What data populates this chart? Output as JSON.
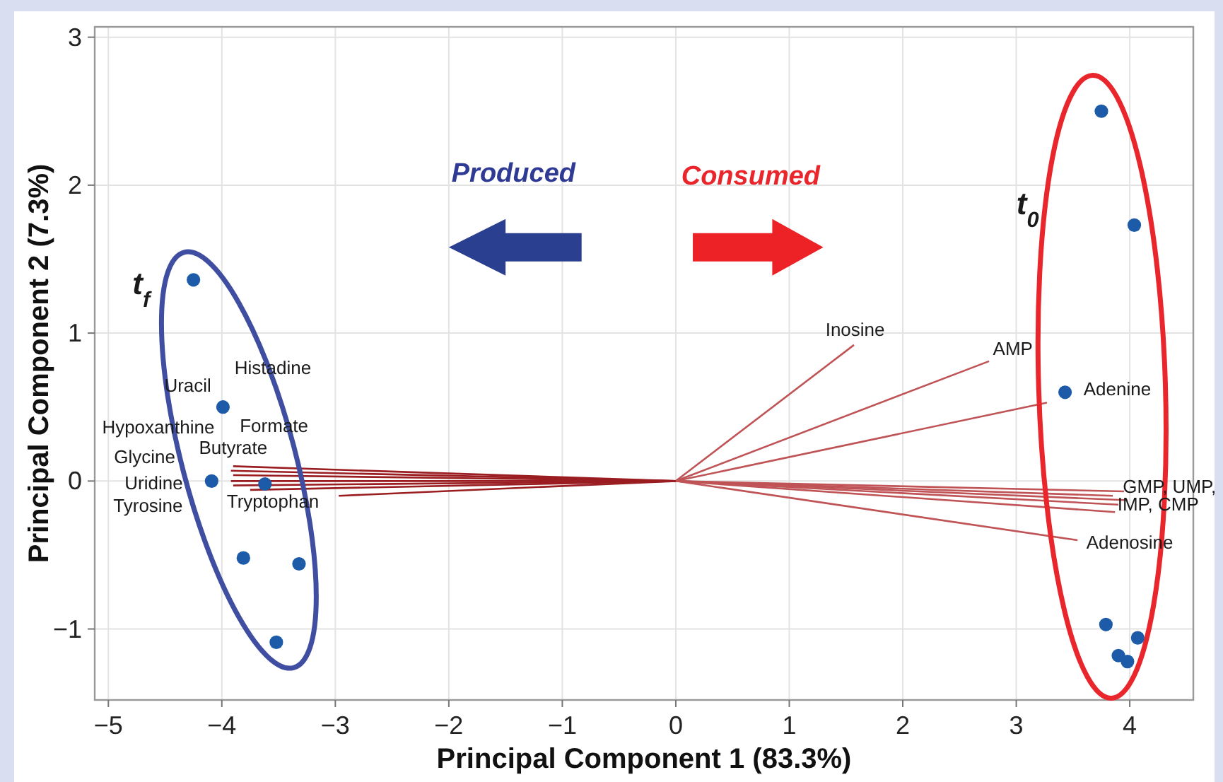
{
  "chart_data": {
    "type": "scatter",
    "xlabel": "Principal Component 1 (83.3%)",
    "ylabel": "Principal Component 2 (7.3%)",
    "xlim": [
      -5.12,
      4.56
    ],
    "ylim": [
      -1.48,
      3.07
    ],
    "xticks": [
      {
        "value": -5,
        "label": "−5"
      },
      {
        "value": -4,
        "label": "−4"
      },
      {
        "value": -3,
        "label": "−3"
      },
      {
        "value": -2,
        "label": "−2"
      },
      {
        "value": -1,
        "label": "−1"
      },
      0,
      1,
      2,
      3,
      4
    ],
    "yticks": [
      {
        "value": -1,
        "label": "−1"
      },
      0,
      1,
      2,
      3
    ],
    "grid": true,
    "series": [
      {
        "type": "line",
        "color": "#bf5356",
        "x": [
          0,
          1.57
        ],
        "values": [
          0,
          0.92
        ]
      },
      {
        "type": "line",
        "color": "#bf5356",
        "x": [
          0,
          2.76
        ],
        "values": [
          0,
          0.81
        ]
      },
      {
        "type": "line",
        "color": "#bf5356",
        "x": [
          0,
          3.27
        ],
        "values": [
          0,
          0.53
        ]
      },
      {
        "type": "line",
        "color": "#bf5356",
        "x": [
          0,
          3.95
        ],
        "values": [
          0,
          -0.07
        ]
      },
      {
        "type": "line",
        "color": "#bf5356",
        "x": [
          0,
          3.85
        ],
        "values": [
          0,
          -0.1
        ]
      },
      {
        "type": "line",
        "color": "#bf5356",
        "x": [
          0,
          3.98
        ],
        "values": [
          0,
          -0.13
        ]
      },
      {
        "type": "line",
        "color": "#bf5356",
        "x": [
          0,
          3.9
        ],
        "values": [
          0,
          -0.16
        ]
      },
      {
        "type": "line",
        "color": "#bf5356",
        "x": [
          0,
          3.87
        ],
        "values": [
          0,
          -0.21
        ]
      },
      {
        "type": "line",
        "color": "#bf5356",
        "x": [
          0,
          3.54
        ],
        "values": [
          0,
          -0.4
        ]
      },
      {
        "type": "line",
        "color": "#9a1d21",
        "x": [
          0,
          -3.9
        ],
        "values": [
          0,
          0.1
        ]
      },
      {
        "type": "line",
        "color": "#9a1d21",
        "x": [
          0,
          -3.92
        ],
        "values": [
          0,
          0.07
        ]
      },
      {
        "type": "line",
        "color": "#9a1d21",
        "x": [
          0,
          -3.9
        ],
        "values": [
          0,
          0.04
        ]
      },
      {
        "type": "line",
        "color": "#9a1d21",
        "x": [
          0,
          -3.92
        ],
        "values": [
          0,
          0.0
        ]
      },
      {
        "type": "line",
        "color": "#9a1d21",
        "x": [
          0,
          -3.9
        ],
        "values": [
          0,
          -0.03
        ]
      },
      {
        "type": "line",
        "color": "#9a1d21",
        "x": [
          0,
          -3.75
        ],
        "values": [
          0,
          -0.06
        ]
      },
      {
        "type": "line",
        "color": "#9a1d21",
        "x": [
          0,
          -2.97
        ],
        "values": [
          0,
          -0.1
        ]
      },
      {
        "color": "#1d5ba8",
        "marker": "circle",
        "x": [
          -4.25,
          -3.99,
          -4.09,
          -3.62,
          -3.81,
          -3.32,
          -3.52
        ],
        "values": [
          1.36,
          0.5,
          0.0,
          -0.02,
          -0.52,
          -0.56,
          -1.09
        ]
      },
      {
        "color": "#1d5ba8",
        "marker": "circle",
        "x": [
          3.75,
          4.04,
          3.43,
          3.79,
          4.07,
          3.9,
          3.98
        ],
        "values": [
          2.5,
          1.73,
          0.6,
          -0.97,
          -1.06,
          -1.18,
          -1.22
        ]
      }
    ],
    "annotations": [
      "Produced",
      "Consumed",
      "t$_{f}$",
      "t$_{0}$",
      "Histadine",
      "Uracil",
      "Hypoxanthine",
      "Formate",
      "Butyrate",
      "Glycine",
      "Uridine",
      "Tyrosine",
      "Tryptophan",
      "Inosine",
      "AMP",
      "Adenine",
      "GMP, UMP,",
      "IMP, CMP",
      "Adenosine"
    ]
  }
}
